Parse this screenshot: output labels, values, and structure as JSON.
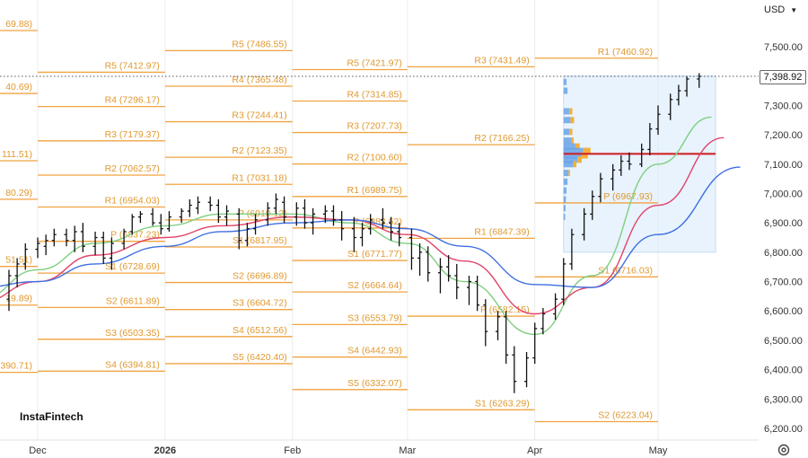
{
  "header": {
    "currency": "USD",
    "last_price": "7,398.92"
  },
  "branding": {
    "logo_text": "InstaFintech"
  },
  "icons": {
    "settings": "settings-gear-icon",
    "currency_menu": "chevron-down-icon"
  },
  "colors": {
    "pivot": "#f0a340",
    "ma_fast": "#7fcf7f",
    "ma_mid": "#e0446a",
    "ma_slow": "#3f6fe0",
    "candle": "#111111",
    "volume_box": "#d6e9fb",
    "poc_line": "#d0252a"
  },
  "chart_data": {
    "type": "ohlc",
    "y_axis": {
      "range": [
        6170,
        7555
      ],
      "ticks": [
        "6,200.00",
        "6,300.00",
        "6,400.00",
        "6,500.00",
        "6,600.00",
        "6,700.00",
        "6,800.00",
        "6,900.00",
        "7,000.00",
        "7,100.00",
        "7,200.00",
        "7,300.00",
        "7,400.00",
        "7,500.00"
      ]
    },
    "x_axis": {
      "ticks": [
        {
          "label": "Dec",
          "bold": false,
          "date": "2025-12-01"
        },
        {
          "label": "2026",
          "bold": true,
          "date": "2026-01-01"
        },
        {
          "label": "Feb",
          "bold": false,
          "date": "2026-02-01"
        },
        {
          "label": "Mar",
          "bold": false,
          "date": "2026-03-01"
        },
        {
          "label": "Apr",
          "bold": false,
          "date": "2026-04-01"
        },
        {
          "label": "May",
          "bold": false,
          "date": "2026-05-01"
        }
      ]
    },
    "pivot_periods": [
      {
        "start": "2025-11-01",
        "end": "2025-12-01",
        "levels": [
          {
            "label": "69.88)",
            "value": 7555
          },
          {
            "label": "40.69)",
            "value": 7340.69
          },
          {
            "label": "111.51)",
            "value": 7111.51
          },
          {
            "label": "80.29)",
            "value": 6980.29
          },
          {
            "label": "51.51)",
            "value": 6751.51
          },
          {
            "label": "19.89)",
            "value": 6619.89
          },
          {
            "label": "390.71)",
            "value": 6390.71
          }
        ]
      },
      {
        "start": "2025-12-01",
        "end": "2026-01-01",
        "levels": [
          {
            "label": "R5 (7412.97)",
            "value": 7412.97
          },
          {
            "label": "R4 (7296.17)",
            "value": 7296.17
          },
          {
            "label": "R3 (7179.37)",
            "value": 7179.37
          },
          {
            "label": "R2 (7062.57)",
            "value": 7062.57
          },
          {
            "label": "R1 (6954.03)",
            "value": 6954.03
          },
          {
            "label": "P (6837.23)",
            "value": 6837.23
          },
          {
            "label": "S1 (6728.69)",
            "value": 6728.69
          },
          {
            "label": "S2 (6611.89)",
            "value": 6611.89
          },
          {
            "label": "S3 (6503.35)",
            "value": 6503.35
          },
          {
            "label": "S4 (6394.81)",
            "value": 6394.81
          }
        ]
      },
      {
        "start": "2026-01-01",
        "end": "2026-02-01",
        "levels": [
          {
            "label": "R5 (7486.55)",
            "value": 7486.55
          },
          {
            "label": "R4 (7365.48)",
            "value": 7365.48
          },
          {
            "label": "R3 (7244.41)",
            "value": 7244.41
          },
          {
            "label": "R2 (7123.35)",
            "value": 7123.35
          },
          {
            "label": "R1 (7031.18)",
            "value": 7031.18
          },
          {
            "label": "P (6910.12)",
            "value": 6910.12
          },
          {
            "label": "S1 (6817.95)",
            "value": 6817.95
          },
          {
            "label": "S2 (6696.89)",
            "value": 6696.89
          },
          {
            "label": "S3 (6604.72)",
            "value": 6604.72
          },
          {
            "label": "S4 (6512.56)",
            "value": 6512.56
          },
          {
            "label": "S5 (6420.40)",
            "value": 6420.4
          }
        ]
      },
      {
        "start": "2026-02-01",
        "end": "2026-03-01",
        "levels": [
          {
            "label": "R5 (7421.97)",
            "value": 7421.97
          },
          {
            "label": "R4 (7314.85)",
            "value": 7314.85
          },
          {
            "label": "R3 (7207.73)",
            "value": 7207.73
          },
          {
            "label": "R2 (7100.60)",
            "value": 7100.6
          },
          {
            "label": "R1 (6989.75)",
            "value": 6989.75
          },
          {
            "label": "P (6882.62)",
            "value": 6882.62
          },
          {
            "label": "S1 (6771.77)",
            "value": 6771.77
          },
          {
            "label": "S2 (6664.64)",
            "value": 6664.64
          },
          {
            "label": "S3 (6553.79)",
            "value": 6553.79
          },
          {
            "label": "S4 (6442.93)",
            "value": 6442.93
          },
          {
            "label": "S5 (6332.07)",
            "value": 6332.07
          }
        ]
      },
      {
        "start": "2026-03-01",
        "end": "2026-04-01",
        "levels": [
          {
            "label": "R3 (7431.49)",
            "value": 7431.49
          },
          {
            "label": "R2 (7166.25)",
            "value": 7166.25
          },
          {
            "label": "R1 (6847.39)",
            "value": 6847.39
          },
          {
            "label": "P (6582.15)",
            "value": 6582.15
          },
          {
            "label": "S1 (6263.29)",
            "value": 6263.29
          }
        ]
      },
      {
        "start": "2026-04-01",
        "end": "2026-05-01",
        "levels": [
          {
            "label": "R1 (7460.92)",
            "value": 7460.92
          },
          {
            "label": "P (6967.93)",
            "value": 6967.93
          },
          {
            "label": "S1 (6716.03)",
            "value": 6716.03
          },
          {
            "label": "S2 (6223.04)",
            "value": 6223.04
          }
        ]
      }
    ],
    "ohlc_series": [
      [
        "2025-11-17",
        6660,
        6780,
        6560,
        6740
      ],
      [
        "2025-11-19",
        6700,
        6760,
        6520,
        6560
      ],
      [
        "2025-11-21",
        6560,
        6700,
        6500,
        6640
      ],
      [
        "2025-11-24",
        6640,
        6740,
        6600,
        6720
      ],
      [
        "2025-11-26",
        6720,
        6780,
        6680,
        6760
      ],
      [
        "2025-11-28",
        6760,
        6830,
        6740,
        6810
      ],
      [
        "2025-12-01",
        6810,
        6850,
        6780,
        6830
      ],
      [
        "2025-12-03",
        6820,
        6860,
        6790,
        6840
      ],
      [
        "2025-12-05",
        6840,
        6880,
        6820,
        6860
      ],
      [
        "2025-12-08",
        6860,
        6880,
        6820,
        6840
      ],
      [
        "2025-12-10",
        6840,
        6890,
        6800,
        6870
      ],
      [
        "2025-12-12",
        6870,
        6900,
        6800,
        6820
      ],
      [
        "2025-12-15",
        6820,
        6870,
        6790,
        6850
      ],
      [
        "2025-12-17",
        6850,
        6870,
        6760,
        6780
      ],
      [
        "2025-12-19",
        6780,
        6850,
        6740,
        6830
      ],
      [
        "2025-12-22",
        6830,
        6880,
        6810,
        6870
      ],
      [
        "2025-12-24",
        6870,
        6930,
        6860,
        6920
      ],
      [
        "2025-12-26",
        6920,
        6940,
        6900,
        6930
      ],
      [
        "2025-12-29",
        6930,
        6950,
        6890,
        6900
      ],
      [
        "2025-12-31",
        6900,
        6930,
        6860,
        6880
      ],
      [
        "2026-01-02",
        6880,
        6940,
        6870,
        6920
      ],
      [
        "2026-01-05",
        6920,
        6950,
        6900,
        6940
      ],
      [
        "2026-01-07",
        6940,
        6980,
        6920,
        6960
      ],
      [
        "2026-01-09",
        6950,
        6990,
        6930,
        6970
      ],
      [
        "2026-01-12",
        6970,
        6990,
        6940,
        6960
      ],
      [
        "2026-01-14",
        6960,
        6980,
        6900,
        6920
      ],
      [
        "2026-01-16",
        6920,
        6960,
        6890,
        6940
      ],
      [
        "2026-01-19",
        6930,
        6950,
        6810,
        6840
      ],
      [
        "2026-01-21",
        6840,
        6900,
        6820,
        6880
      ],
      [
        "2026-01-23",
        6880,
        6930,
        6860,
        6910
      ],
      [
        "2026-01-26",
        6910,
        6970,
        6890,
        6950
      ],
      [
        "2026-01-28",
        6950,
        7000,
        6930,
        6980
      ],
      [
        "2026-01-30",
        6970,
        6990,
        6900,
        6920
      ],
      [
        "2026-02-02",
        6920,
        6970,
        6890,
        6950
      ],
      [
        "2026-02-04",
        6950,
        6980,
        6880,
        6900
      ],
      [
        "2026-02-06",
        6900,
        6950,
        6860,
        6930
      ],
      [
        "2026-02-09",
        6930,
        6960,
        6900,
        6940
      ],
      [
        "2026-02-11",
        6940,
        6960,
        6890,
        6910
      ],
      [
        "2026-02-13",
        6910,
        6940,
        6840,
        6880
      ],
      [
        "2026-02-16",
        6880,
        6920,
        6800,
        6850
      ],
      [
        "2026-02-18",
        6850,
        6900,
        6820,
        6880
      ],
      [
        "2026-02-20",
        6880,
        6930,
        6860,
        6910
      ],
      [
        "2026-02-23",
        6910,
        6950,
        6880,
        6900
      ],
      [
        "2026-02-25",
        6900,
        6920,
        6840,
        6870
      ],
      [
        "2026-02-27",
        6870,
        6900,
        6820,
        6850
      ],
      [
        "2026-03-02",
        6850,
        6880,
        6740,
        6780
      ],
      [
        "2026-03-04",
        6780,
        6830,
        6720,
        6800
      ],
      [
        "2026-03-06",
        6800,
        6820,
        6700,
        6730
      ],
      [
        "2026-03-09",
        6730,
        6780,
        6660,
        6750
      ],
      [
        "2026-03-11",
        6750,
        6790,
        6700,
        6720
      ],
      [
        "2026-03-13",
        6720,
        6760,
        6640,
        6680
      ],
      [
        "2026-03-16",
        6680,
        6720,
        6620,
        6700
      ],
      [
        "2026-03-18",
        6700,
        6720,
        6600,
        6620
      ],
      [
        "2026-03-20",
        6620,
        6640,
        6480,
        6530
      ],
      [
        "2026-03-23",
        6530,
        6600,
        6500,
        6580
      ],
      [
        "2026-03-25",
        6580,
        6600,
        6420,
        6450
      ],
      [
        "2026-03-27",
        6450,
        6480,
        6320,
        6360
      ],
      [
        "2026-03-30",
        6360,
        6460,
        6340,
        6440
      ],
      [
        "2026-04-01",
        6440,
        6560,
        6420,
        6540
      ],
      [
        "2026-04-03",
        6540,
        6610,
        6520,
        6590
      ],
      [
        "2026-04-06",
        6590,
        6660,
        6570,
        6640
      ],
      [
        "2026-04-08",
        6640,
        6780,
        6620,
        6760
      ],
      [
        "2026-04-10",
        6760,
        6880,
        6740,
        6860
      ],
      [
        "2026-04-13",
        6860,
        6950,
        6840,
        6930
      ],
      [
        "2026-04-15",
        6930,
        7010,
        6910,
        6990
      ],
      [
        "2026-04-17",
        6990,
        7070,
        6970,
        7050
      ],
      [
        "2026-04-20",
        7050,
        7100,
        7010,
        7080
      ],
      [
        "2026-04-22",
        7080,
        7130,
        7060,
        7110
      ],
      [
        "2026-04-24",
        7110,
        7140,
        7080,
        7100
      ],
      [
        "2026-04-27",
        7100,
        7170,
        7090,
        7150
      ],
      [
        "2026-04-29",
        7150,
        7240,
        7130,
        7220
      ],
      [
        "2026-05-01",
        7220,
        7300,
        7200,
        7270
      ],
      [
        "2026-05-04",
        7270,
        7340,
        7250,
        7320
      ],
      [
        "2026-05-06",
        7320,
        7370,
        7300,
        7350
      ],
      [
        "2026-05-08",
        7350,
        7400,
        7330,
        7390
      ],
      [
        "2026-05-11",
        7390,
        7410,
        7360,
        7398.92
      ]
    ],
    "moving_averages": [
      {
        "role": "fast",
        "points": [
          [
            "2025-11-17",
            6640
          ],
          [
            "2025-12-01",
            6740
          ],
          [
            "2025-12-15",
            6830
          ],
          [
            "2026-01-01",
            6890
          ],
          [
            "2026-01-15",
            6930
          ],
          [
            "2026-02-01",
            6930
          ],
          [
            "2026-02-15",
            6900
          ],
          [
            "2026-03-01",
            6830
          ],
          [
            "2026-03-15",
            6700
          ],
          [
            "2026-04-01",
            6520
          ],
          [
            "2026-04-15",
            6720
          ],
          [
            "2026-05-01",
            7100
          ],
          [
            "2026-05-14",
            7260
          ]
        ]
      },
      {
        "role": "mid",
        "points": [
          [
            "2025-11-17",
            6630
          ],
          [
            "2025-12-01",
            6700
          ],
          [
            "2025-12-15",
            6790
          ],
          [
            "2026-01-01",
            6850
          ],
          [
            "2026-01-15",
            6890
          ],
          [
            "2026-02-01",
            6920
          ],
          [
            "2026-02-15",
            6910
          ],
          [
            "2026-03-01",
            6860
          ],
          [
            "2026-03-15",
            6770
          ],
          [
            "2026-04-01",
            6590
          ],
          [
            "2026-04-15",
            6680
          ],
          [
            "2026-05-01",
            6960
          ],
          [
            "2026-05-17",
            7190
          ]
        ]
      },
      {
        "role": "slow",
        "points": [
          [
            "2025-11-17",
            6680
          ],
          [
            "2025-12-01",
            6700
          ],
          [
            "2025-12-15",
            6760
          ],
          [
            "2026-01-01",
            6820
          ],
          [
            "2026-01-15",
            6870
          ],
          [
            "2026-02-01",
            6900
          ],
          [
            "2026-02-15",
            6910
          ],
          [
            "2026-03-01",
            6880
          ],
          [
            "2026-03-15",
            6820
          ],
          [
            "2026-04-01",
            6690
          ],
          [
            "2026-04-15",
            6680
          ],
          [
            "2026-05-01",
            6860
          ],
          [
            "2026-05-21",
            7090
          ]
        ]
      }
    ],
    "volume_profile": {
      "start": "2026-04-08",
      "end": "2026-05-15",
      "price_range": [
        6800,
        7400
      ],
      "poc": 7135,
      "rows": [
        {
          "price": 7380,
          "blue": 0.15,
          "orange": 0.0
        },
        {
          "price": 7350,
          "blue": 0.2,
          "orange": 0.0
        },
        {
          "price": 7280,
          "blue": 0.3,
          "orange": 0.2
        },
        {
          "price": 7250,
          "blue": 0.35,
          "orange": 0.25
        },
        {
          "price": 7210,
          "blue": 0.3,
          "orange": 0.2
        },
        {
          "price": 7180,
          "blue": 0.4,
          "orange": 0.15
        },
        {
          "price": 7160,
          "blue": 0.6,
          "orange": 0.3
        },
        {
          "price": 7145,
          "blue": 1.0,
          "orange": 0.5
        },
        {
          "price": 7130,
          "blue": 0.9,
          "orange": 0.45
        },
        {
          "price": 7115,
          "blue": 0.7,
          "orange": 0.3
        },
        {
          "price": 7100,
          "blue": 0.5,
          "orange": 0.2
        },
        {
          "price": 7070,
          "blue": 0.25,
          "orange": 0.1
        },
        {
          "price": 7040,
          "blue": 0.2,
          "orange": 0.0
        },
        {
          "price": 7010,
          "blue": 0.15,
          "orange": 0.0
        },
        {
          "price": 6980,
          "blue": 0.12,
          "orange": 0.0
        },
        {
          "price": 6950,
          "blue": 0.1,
          "orange": 0.0
        },
        {
          "price": 6920,
          "blue": 0.08,
          "orange": 0.0
        }
      ]
    }
  }
}
